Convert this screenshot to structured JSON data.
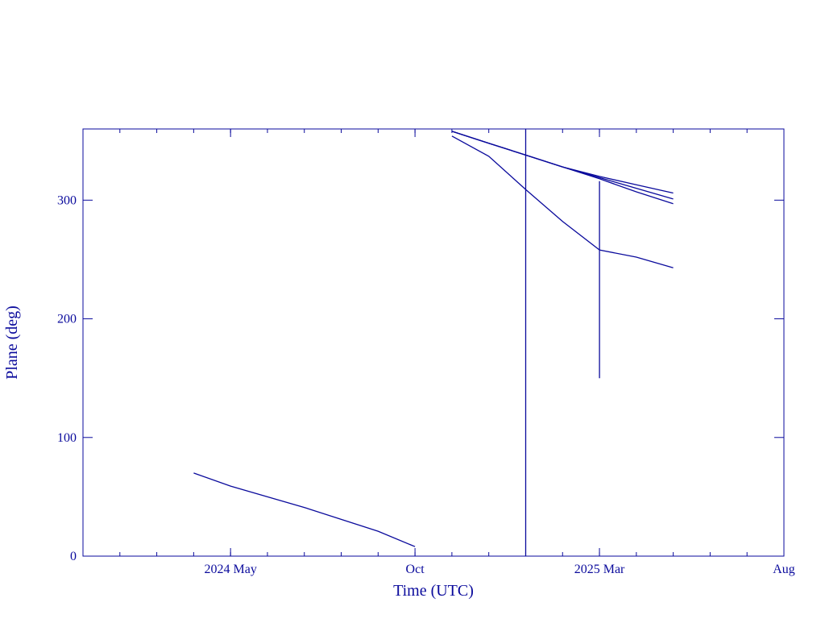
{
  "chart_data": {
    "type": "line",
    "xlabel": "Time (UTC)",
    "ylabel": "Plane (deg)",
    "xlim": [
      "2024-01",
      "2025-08"
    ],
    "xticks": [
      {
        "value": "2024-05",
        "label": "2024 May"
      },
      {
        "value": "2024-10",
        "label": "Oct"
      },
      {
        "value": "2025-03",
        "label": "2025 Mar"
      },
      {
        "value": "2025-08",
        "label": "Aug"
      }
    ],
    "ylim": [
      0,
      360
    ],
    "yticks": [
      0,
      100,
      200,
      300
    ],
    "grid": false,
    "series": [
      {
        "color": "#0a0a9c",
        "x": [
          "2024-04",
          "2024-05",
          "2024-06",
          "2024-07",
          "2024-08",
          "2024-09",
          "2024-10"
        ],
        "values": [
          70,
          59,
          50,
          41,
          31,
          21,
          8
        ]
      },
      {
        "color": "#0a0a9c",
        "x": [
          "2024-11",
          "2024-12",
          "2025-01",
          "2025-02",
          "2025-03",
          "2025-04",
          "2025-05"
        ],
        "values": [
          358,
          348,
          338,
          328,
          318,
          307,
          297
        ]
      },
      {
        "color": "#0a0a9c",
        "x": [
          "2024-11",
          "2024-12",
          "2025-01",
          "2025-02",
          "2025-03",
          "2025-04",
          "2025-05"
        ],
        "values": [
          358,
          348,
          338,
          328,
          320,
          313,
          306
        ]
      },
      {
        "color": "#0a0a9c",
        "x": [
          "2024-11",
          "2024-12",
          "2025-01",
          "2025-02",
          "2025-03",
          "2025-04",
          "2025-05"
        ],
        "values": [
          358,
          348,
          338,
          328,
          319,
          310,
          301
        ]
      },
      {
        "color": "#0a0a9c",
        "x": [
          "2024-11",
          "2024-12",
          "2025-01",
          "2025-02",
          "2025-03",
          "2025-04",
          "2025-05"
        ],
        "values": [
          354,
          337,
          309,
          282,
          258,
          252,
          243
        ]
      },
      {
        "color": "#0a0a9c",
        "x": [
          "2025-01",
          "2025-01"
        ],
        "values": [
          0,
          360
        ]
      },
      {
        "color": "#0a0a9c",
        "x": [
          "2025-03",
          "2025-03"
        ],
        "values": [
          316,
          150
        ]
      }
    ]
  }
}
